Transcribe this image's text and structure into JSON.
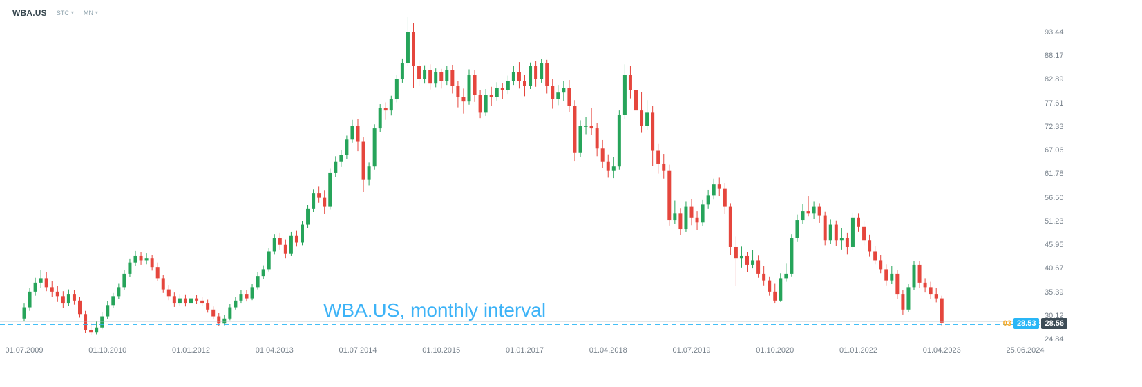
{
  "header": {
    "symbol": "WBA.US",
    "exchange": "STC",
    "interval": "MN"
  },
  "price_labels": {
    "orange_fragment": "03",
    "price_line_value": "28.53",
    "last_price_value": "28.56"
  },
  "colors": {
    "up": "#26a45a",
    "down": "#e5463d",
    "price_line": "#29b6f6",
    "last_price_line": "#b5bcc4",
    "last_price_badge_bg": "#3d4c56",
    "alert_text": "#f7a823",
    "watermark_text": "#3db3f7"
  },
  "chart_data": {
    "type": "candlestick",
    "title": "WBA.US, monthly interval",
    "symbol": "WBA.US",
    "interval": "monthly",
    "start": "2009-07",
    "end": "2023-04",
    "price_line": 28.53,
    "last_price": 28.56,
    "ylim": [
      24.84,
      93.44
    ],
    "grid": false,
    "x_ticks": [
      "01.07.2009",
      "01.10.2010",
      "01.01.2012",
      "01.04.2013",
      "01.07.2014",
      "01.10.2015",
      "01.01.2017",
      "01.04.2018",
      "01.07.2019",
      "01.10.2020",
      "01.01.2022",
      "01.04.2023",
      "25.06.2024"
    ],
    "y_ticks": [
      "93.44",
      "88.17",
      "82.89",
      "77.61",
      "72.33",
      "67.06",
      "61.78",
      "56.50",
      "51.23",
      "45.95",
      "40.67",
      "35.39",
      "30.12",
      "24.84"
    ],
    "candles": [
      [
        29.5,
        33.0,
        28.8,
        32.0
      ],
      [
        32.0,
        36.4,
        31.2,
        35.5
      ],
      [
        35.5,
        38.6,
        34.6,
        37.5
      ],
      [
        37.5,
        40.4,
        36.3,
        38.5
      ],
      [
        38.5,
        39.8,
        35.6,
        36.5
      ],
      [
        36.5,
        37.9,
        34.4,
        35.5
      ],
      [
        35.5,
        36.8,
        33.2,
        34.5
      ],
      [
        34.5,
        35.6,
        31.9,
        33.0
      ],
      [
        33.0,
        36.0,
        32.3,
        35.0
      ],
      [
        35.0,
        35.9,
        32.6,
        33.5
      ],
      [
        33.5,
        34.4,
        29.7,
        30.5
      ],
      [
        30.5,
        31.2,
        26.3,
        27.0
      ],
      [
        27.0,
        28.6,
        25.9,
        26.5
      ],
      [
        26.5,
        28.8,
        26.0,
        27.5
      ],
      [
        27.5,
        30.9,
        27.1,
        30.0
      ],
      [
        30.0,
        33.4,
        29.4,
        32.5
      ],
      [
        32.5,
        35.2,
        31.8,
        34.5
      ],
      [
        34.5,
        37.4,
        33.8,
        36.5
      ],
      [
        36.5,
        40.3,
        35.9,
        39.5
      ],
      [
        39.5,
        42.9,
        38.8,
        42.0
      ],
      [
        42.0,
        44.6,
        41.2,
        43.5
      ],
      [
        43.5,
        44.4,
        41.5,
        42.5
      ],
      [
        42.5,
        44.1,
        41.6,
        43.0
      ],
      [
        43.0,
        43.8,
        40.2,
        41.0
      ],
      [
        41.0,
        42.0,
        37.8,
        38.5
      ],
      [
        38.5,
        39.3,
        35.2,
        36.0
      ],
      [
        36.0,
        37.0,
        33.6,
        34.5
      ],
      [
        34.5,
        35.3,
        32.1,
        33.0
      ],
      [
        33.0,
        35.0,
        32.4,
        34.0
      ],
      [
        34.0,
        34.9,
        32.2,
        33.0
      ],
      [
        33.0,
        35.1,
        32.5,
        34.0
      ],
      [
        34.0,
        34.8,
        32.7,
        33.5
      ],
      [
        33.5,
        34.3,
        32.3,
        33.0
      ],
      [
        33.0,
        33.7,
        30.8,
        31.5
      ],
      [
        31.5,
        32.2,
        29.3,
        30.0
      ],
      [
        30.0,
        30.7,
        27.8,
        28.5
      ],
      [
        28.5,
        30.3,
        28.0,
        29.5
      ],
      [
        29.5,
        32.7,
        29.1,
        32.0
      ],
      [
        32.0,
        34.3,
        31.5,
        33.5
      ],
      [
        33.5,
        35.8,
        33.0,
        35.0
      ],
      [
        35.0,
        35.9,
        33.3,
        34.0
      ],
      [
        34.0,
        37.3,
        33.6,
        36.5
      ],
      [
        36.5,
        39.9,
        36.0,
        39.0
      ],
      [
        39.0,
        41.4,
        38.3,
        40.5
      ],
      [
        40.5,
        45.3,
        40.0,
        44.5
      ],
      [
        44.5,
        48.4,
        43.9,
        47.5
      ],
      [
        47.5,
        48.6,
        44.9,
        46.0
      ],
      [
        46.0,
        47.1,
        43.0,
        44.0
      ],
      [
        44.0,
        48.9,
        43.5,
        48.0
      ],
      [
        48.0,
        49.1,
        45.6,
        46.5
      ],
      [
        46.5,
        51.3,
        45.9,
        50.5
      ],
      [
        50.5,
        54.9,
        49.8,
        54.0
      ],
      [
        54.0,
        58.4,
        53.3,
        57.5
      ],
      [
        57.5,
        59.0,
        55.4,
        56.5
      ],
      [
        56.5,
        58.1,
        52.9,
        54.5
      ],
      [
        54.5,
        63.0,
        53.9,
        62.0
      ],
      [
        62.0,
        65.8,
        61.1,
        64.5
      ],
      [
        64.5,
        67.2,
        63.4,
        66.0
      ],
      [
        66.0,
        70.4,
        65.2,
        69.5
      ],
      [
        69.5,
        73.9,
        68.8,
        72.5
      ],
      [
        72.5,
        74.1,
        66.9,
        69.0
      ],
      [
        69.0,
        70.0,
        57.8,
        60.5
      ],
      [
        60.5,
        64.4,
        59.3,
        63.5
      ],
      [
        63.5,
        72.9,
        62.8,
        72.0
      ],
      [
        72.0,
        77.4,
        71.2,
        76.5
      ],
      [
        76.5,
        77.8,
        73.9,
        76.0
      ],
      [
        76.0,
        79.3,
        74.9,
        78.5
      ],
      [
        78.5,
        84.0,
        77.8,
        83.0
      ],
      [
        83.0,
        87.6,
        82.2,
        86.5
      ],
      [
        86.5,
        97.0,
        85.9,
        93.5
      ],
      [
        93.5,
        95.5,
        81.0,
        86.0
      ],
      [
        86.0,
        87.2,
        81.4,
        83.0
      ],
      [
        83.0,
        86.1,
        82.0,
        85.0
      ],
      [
        85.0,
        86.3,
        80.7,
        82.0
      ],
      [
        82.0,
        85.4,
        81.2,
        84.5
      ],
      [
        84.5,
        85.3,
        80.9,
        82.5
      ],
      [
        82.5,
        86.0,
        81.7,
        85.0
      ],
      [
        85.0,
        86.2,
        79.8,
        81.5
      ],
      [
        81.5,
        82.6,
        76.7,
        79.0
      ],
      [
        79.0,
        80.9,
        75.3,
        78.0
      ],
      [
        78.0,
        85.2,
        77.3,
        84.0
      ],
      [
        84.0,
        85.0,
        77.9,
        79.5
      ],
      [
        79.5,
        80.6,
        74.3,
        75.5
      ],
      [
        75.5,
        80.8,
        74.8,
        79.5
      ],
      [
        79.5,
        81.3,
        77.1,
        79.0
      ],
      [
        79.0,
        82.3,
        78.2,
        81.0
      ],
      [
        81.0,
        82.1,
        78.6,
        80.5
      ],
      [
        80.5,
        83.8,
        79.7,
        82.5
      ],
      [
        82.5,
        86.0,
        81.7,
        84.5
      ],
      [
        84.5,
        86.8,
        80.9,
        82.5
      ],
      [
        82.5,
        83.9,
        79.2,
        81.5
      ],
      [
        81.5,
        86.7,
        80.8,
        86.0
      ],
      [
        86.0,
        87.1,
        81.3,
        83.0
      ],
      [
        83.0,
        87.5,
        82.2,
        86.5
      ],
      [
        86.5,
        87.3,
        79.8,
        81.5
      ],
      [
        81.5,
        83.0,
        76.4,
        78.5
      ],
      [
        78.5,
        81.7,
        77.2,
        80.0
      ],
      [
        80.0,
        82.5,
        78.1,
        81.0
      ],
      [
        81.0,
        82.8,
        75.6,
        77.0
      ],
      [
        77.0,
        78.3,
        64.6,
        66.5
      ],
      [
        66.5,
        73.8,
        65.7,
        72.5
      ],
      [
        72.5,
        74.5,
        70.7,
        72.5
      ],
      [
        72.5,
        76.6,
        70.6,
        72.0
      ],
      [
        72.0,
        73.2,
        65.8,
        67.5
      ],
      [
        67.5,
        69.4,
        63.2,
        64.5
      ],
      [
        64.5,
        66.2,
        61.0,
        62.5
      ],
      [
        62.5,
        65.6,
        60.9,
        63.5
      ],
      [
        63.5,
        76.0,
        62.8,
        75.0
      ],
      [
        75.0,
        86.3,
        74.1,
        84.0
      ],
      [
        84.0,
        85.9,
        78.7,
        80.5
      ],
      [
        80.5,
        82.4,
        74.2,
        76.0
      ],
      [
        76.0,
        80.1,
        71.0,
        72.5
      ],
      [
        72.5,
        78.3,
        71.6,
        75.5
      ],
      [
        75.5,
        77.0,
        63.6,
        67.0
      ],
      [
        67.0,
        68.5,
        61.9,
        64.0
      ],
      [
        64.0,
        66.3,
        60.8,
        62.5
      ],
      [
        62.5,
        63.9,
        50.3,
        51.5
      ],
      [
        51.5,
        55.9,
        50.6,
        53.0
      ],
      [
        53.0,
        54.1,
        48.2,
        49.5
      ],
      [
        49.5,
        55.6,
        48.9,
        54.5
      ],
      [
        54.5,
        56.2,
        50.4,
        52.0
      ],
      [
        52.0,
        53.5,
        49.3,
        51.0
      ],
      [
        51.0,
        56.0,
        50.2,
        55.0
      ],
      [
        55.0,
        58.3,
        54.0,
        57.0
      ],
      [
        57.0,
        60.8,
        56.1,
        59.5
      ],
      [
        59.5,
        61.0,
        56.9,
        58.5
      ],
      [
        58.5,
        59.7,
        52.9,
        54.5
      ],
      [
        54.5,
        55.3,
        43.8,
        45.5
      ],
      [
        45.5,
        47.9,
        36.7,
        43.0
      ],
      [
        43.0,
        45.6,
        40.9,
        43.5
      ],
      [
        43.5,
        44.4,
        39.8,
        41.5
      ],
      [
        41.5,
        44.8,
        40.7,
        42.5
      ],
      [
        42.5,
        43.6,
        38.6,
        39.5
      ],
      [
        39.5,
        41.2,
        36.9,
        38.0
      ],
      [
        38.0,
        38.9,
        34.6,
        35.5
      ],
      [
        35.5,
        37.4,
        33.0,
        33.5
      ],
      [
        33.5,
        39.6,
        33.2,
        38.5
      ],
      [
        38.5,
        41.9,
        37.7,
        39.5
      ],
      [
        39.5,
        48.4,
        38.9,
        47.5
      ],
      [
        47.5,
        52.8,
        46.6,
        51.5
      ],
      [
        51.5,
        55.1,
        50.7,
        53.5
      ],
      [
        53.5,
        56.9,
        52.4,
        53.0
      ],
      [
        53.0,
        55.6,
        51.8,
        54.5
      ],
      [
        54.5,
        55.3,
        50.9,
        52.5
      ],
      [
        52.5,
        53.4,
        45.9,
        47.0
      ],
      [
        47.0,
        51.6,
        46.2,
        50.5
      ],
      [
        50.5,
        51.4,
        45.8,
        47.0
      ],
      [
        47.0,
        49.8,
        44.9,
        47.5
      ],
      [
        47.5,
        48.6,
        43.9,
        45.5
      ],
      [
        45.5,
        53.1,
        44.8,
        52.0
      ],
      [
        52.0,
        53.0,
        48.9,
        50.0
      ],
      [
        50.0,
        51.2,
        45.9,
        47.0
      ],
      [
        47.0,
        48.3,
        43.4,
        44.5
      ],
      [
        44.5,
        45.7,
        41.6,
        42.5
      ],
      [
        42.5,
        43.7,
        39.6,
        40.5
      ],
      [
        40.5,
        41.6,
        36.9,
        38.0
      ],
      [
        38.0,
        41.3,
        37.3,
        39.5
      ],
      [
        39.5,
        40.4,
        33.9,
        35.0
      ],
      [
        35.0,
        35.9,
        30.4,
        31.5
      ],
      [
        31.5,
        37.2,
        30.9,
        36.5
      ],
      [
        36.5,
        42.3,
        35.8,
        41.5
      ],
      [
        41.5,
        42.4,
        36.4,
        37.5
      ],
      [
        37.5,
        38.5,
        35.3,
        36.5
      ],
      [
        36.5,
        37.7,
        33.8,
        35.0
      ],
      [
        35.0,
        36.3,
        33.1,
        34.0
      ],
      [
        34.0,
        34.6,
        27.9,
        28.56
      ]
    ]
  }
}
